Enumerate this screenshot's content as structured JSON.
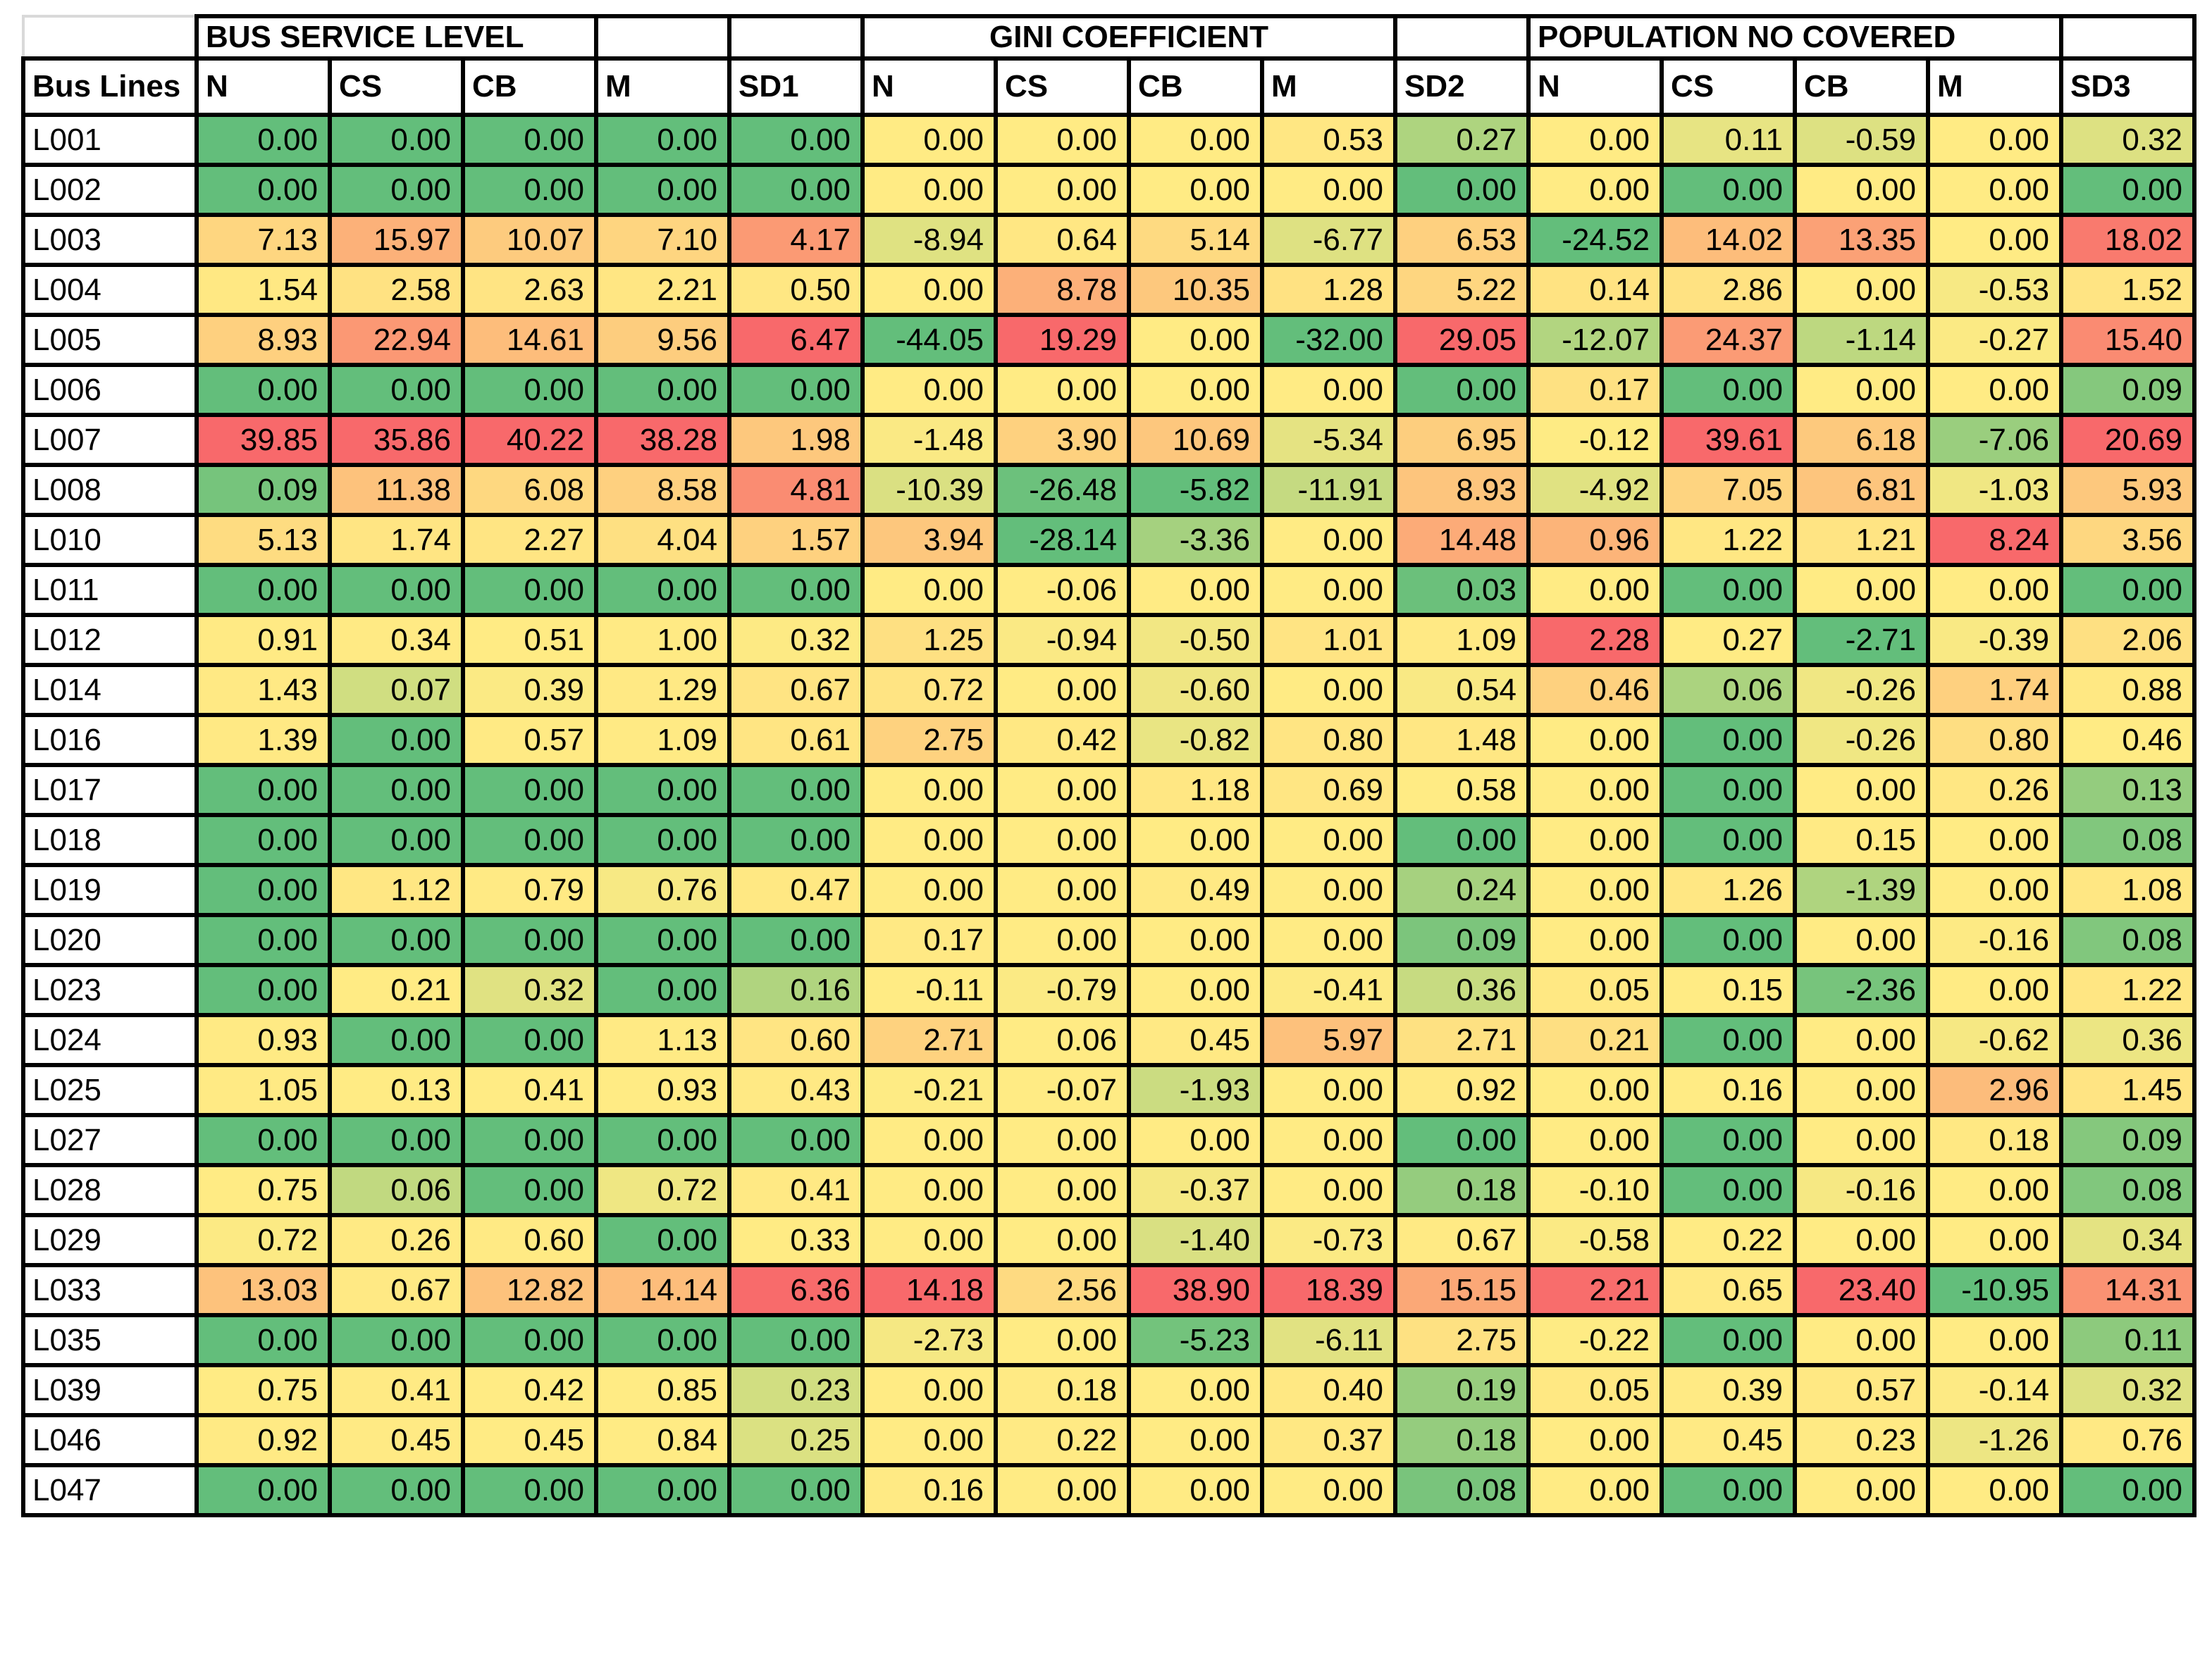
{
  "page": {
    "background": "#FFFFFF"
  },
  "chart_data": {
    "type": "heatmap",
    "title": "",
    "corner_label": "Bus Lines",
    "column_groups": [
      {
        "label": "BUS SERVICE LEVEL",
        "span": 3,
        "align": "left"
      },
      {
        "label": "",
        "span": 1,
        "align": "left"
      },
      {
        "label": "",
        "span": 1,
        "align": "left"
      },
      {
        "label": "GINI COEFFICIENT",
        "span": 4,
        "align": "center"
      },
      {
        "label": "",
        "span": 1,
        "align": "left"
      },
      {
        "label": "POPULATION NO COVERED",
        "span": 4,
        "align": "left"
      },
      {
        "label": "",
        "span": 1,
        "align": "left"
      }
    ],
    "columns": [
      "N",
      "CS",
      "CB",
      "M",
      "SD1",
      "N",
      "CS",
      "CB",
      "M",
      "SD2",
      "N",
      "CS",
      "CB",
      "M",
      "SD3"
    ],
    "value_format": "0.00",
    "color_scale": {
      "type": "3-color-scale-per-column",
      "min_color": "#63BE7B",
      "mid_color": "#FFEB84",
      "max_color": "#F8696B",
      "midpoint": "50th percentile"
    },
    "rows": [
      {
        "line": "L001",
        "values": [
          0.0,
          0.0,
          0.0,
          0.0,
          0.0,
          0.0,
          0.0,
          0.0,
          0.53,
          0.27,
          0.0,
          0.11,
          -0.59,
          0.0,
          0.32
        ]
      },
      {
        "line": "L002",
        "values": [
          0.0,
          0.0,
          0.0,
          0.0,
          0.0,
          0.0,
          0.0,
          0.0,
          0.0,
          0.0,
          0.0,
          0.0,
          0.0,
          0.0,
          0.0
        ]
      },
      {
        "line": "L003",
        "values": [
          7.13,
          15.97,
          10.07,
          7.1,
          4.17,
          -8.94,
          0.64,
          5.14,
          -6.77,
          6.53,
          -24.52,
          14.02,
          13.35,
          0.0,
          18.02
        ]
      },
      {
        "line": "L004",
        "values": [
          1.54,
          2.58,
          2.63,
          2.21,
          0.5,
          0.0,
          8.78,
          10.35,
          1.28,
          5.22,
          0.14,
          2.86,
          0.0,
          -0.53,
          1.52
        ]
      },
      {
        "line": "L005",
        "values": [
          8.93,
          22.94,
          14.61,
          9.56,
          6.47,
          -44.05,
          19.29,
          0.0,
          -32.0,
          29.05,
          -12.07,
          24.37,
          -1.14,
          -0.27,
          15.4
        ]
      },
      {
        "line": "L006",
        "values": [
          0.0,
          0.0,
          0.0,
          0.0,
          0.0,
          0.0,
          0.0,
          0.0,
          0.0,
          0.0,
          0.17,
          0.0,
          0.0,
          0.0,
          0.09
        ]
      },
      {
        "line": "L007",
        "values": [
          39.85,
          35.86,
          40.22,
          38.28,
          1.98,
          -1.48,
          3.9,
          10.69,
          -5.34,
          6.95,
          -0.12,
          39.61,
          6.18,
          -7.06,
          20.69
        ]
      },
      {
        "line": "L008",
        "values": [
          0.09,
          11.38,
          6.08,
          8.58,
          4.81,
          -10.39,
          -26.48,
          -5.82,
          -11.91,
          8.93,
          -4.92,
          7.05,
          6.81,
          -1.03,
          5.93
        ]
      },
      {
        "line": "L010",
        "values": [
          5.13,
          1.74,
          2.27,
          4.04,
          1.57,
          3.94,
          -28.14,
          -3.36,
          0.0,
          14.48,
          0.96,
          1.22,
          1.21,
          8.24,
          3.56
        ]
      },
      {
        "line": "L011",
        "values": [
          0.0,
          0.0,
          0.0,
          0.0,
          0.0,
          0.0,
          -0.06,
          0.0,
          0.0,
          0.03,
          0.0,
          0.0,
          0.0,
          0.0,
          0.0
        ]
      },
      {
        "line": "L012",
        "values": [
          0.91,
          0.34,
          0.51,
          1.0,
          0.32,
          1.25,
          -0.94,
          -0.5,
          1.01,
          1.09,
          2.28,
          0.27,
          -2.71,
          -0.39,
          2.06
        ]
      },
      {
        "line": "L014",
        "values": [
          1.43,
          0.07,
          0.39,
          1.29,
          0.67,
          0.72,
          0.0,
          -0.6,
          0.0,
          0.54,
          0.46,
          0.06,
          -0.26,
          1.74,
          0.88
        ]
      },
      {
        "line": "L016",
        "values": [
          1.39,
          0.0,
          0.57,
          1.09,
          0.61,
          2.75,
          0.42,
          -0.82,
          0.8,
          1.48,
          0.0,
          0.0,
          -0.26,
          0.8,
          0.46
        ]
      },
      {
        "line": "L017",
        "values": [
          0.0,
          0.0,
          0.0,
          0.0,
          0.0,
          0.0,
          0.0,
          1.18,
          0.69,
          0.58,
          0.0,
          0.0,
          0.0,
          0.26,
          0.13
        ]
      },
      {
        "line": "L018",
        "values": [
          0.0,
          0.0,
          0.0,
          0.0,
          0.0,
          0.0,
          0.0,
          0.0,
          0.0,
          0.0,
          0.0,
          0.0,
          0.15,
          0.0,
          0.08
        ]
      },
      {
        "line": "L019",
        "values": [
          0.0,
          1.12,
          0.79,
          0.76,
          0.47,
          0.0,
          0.0,
          0.49,
          0.0,
          0.24,
          0.0,
          1.26,
          -1.39,
          0.0,
          1.08
        ]
      },
      {
        "line": "L020",
        "values": [
          0.0,
          0.0,
          0.0,
          0.0,
          0.0,
          0.17,
          0.0,
          0.0,
          0.0,
          0.09,
          0.0,
          0.0,
          0.0,
          -0.16,
          0.08
        ]
      },
      {
        "line": "L023",
        "values": [
          0.0,
          0.21,
          0.32,
          0.0,
          0.16,
          -0.11,
          -0.79,
          0.0,
          -0.41,
          0.36,
          0.05,
          0.15,
          -2.36,
          0.0,
          1.22
        ]
      },
      {
        "line": "L024",
        "values": [
          0.93,
          0.0,
          0.0,
          1.13,
          0.6,
          2.71,
          0.06,
          0.45,
          5.97,
          2.71,
          0.21,
          0.0,
          0.0,
          -0.62,
          0.36
        ]
      },
      {
        "line": "L025",
        "values": [
          1.05,
          0.13,
          0.41,
          0.93,
          0.43,
          -0.21,
          -0.07,
          -1.93,
          0.0,
          0.92,
          0.0,
          0.16,
          0.0,
          2.96,
          1.45
        ]
      },
      {
        "line": "L027",
        "values": [
          0.0,
          0.0,
          0.0,
          0.0,
          0.0,
          0.0,
          0.0,
          0.0,
          0.0,
          0.0,
          0.0,
          0.0,
          0.0,
          0.18,
          0.09
        ]
      },
      {
        "line": "L028",
        "values": [
          0.75,
          0.06,
          0.0,
          0.72,
          0.41,
          0.0,
          0.0,
          -0.37,
          0.0,
          0.18,
          -0.1,
          0.0,
          -0.16,
          0.0,
          0.08
        ]
      },
      {
        "line": "L029",
        "values": [
          0.72,
          0.26,
          0.6,
          0.0,
          0.33,
          0.0,
          0.0,
          -1.4,
          -0.73,
          0.67,
          -0.58,
          0.22,
          0.0,
          0.0,
          0.34
        ]
      },
      {
        "line": "L033",
        "values": [
          13.03,
          0.67,
          12.82,
          14.14,
          6.36,
          14.18,
          2.56,
          38.9,
          18.39,
          15.15,
          2.21,
          0.65,
          23.4,
          -10.95,
          14.31
        ]
      },
      {
        "line": "L035",
        "values": [
          0.0,
          0.0,
          0.0,
          0.0,
          0.0,
          -2.73,
          0.0,
          -5.23,
          -6.11,
          2.75,
          -0.22,
          0.0,
          0.0,
          0.0,
          0.11
        ]
      },
      {
        "line": "L039",
        "values": [
          0.75,
          0.41,
          0.42,
          0.85,
          0.23,
          0.0,
          0.18,
          0.0,
          0.4,
          0.19,
          0.05,
          0.39,
          0.57,
          -0.14,
          0.32
        ]
      },
      {
        "line": "L046",
        "values": [
          0.92,
          0.45,
          0.45,
          0.84,
          0.25,
          0.0,
          0.22,
          0.0,
          0.37,
          0.18,
          0.0,
          0.45,
          0.23,
          -1.26,
          0.76
        ]
      },
      {
        "line": "L047",
        "values": [
          0.0,
          0.0,
          0.0,
          0.0,
          0.0,
          0.16,
          0.0,
          0.0,
          0.0,
          0.08,
          0.0,
          0.0,
          0.0,
          0.0,
          0.0
        ]
      }
    ],
    "layout": {
      "label_col_width": 246,
      "data_col_width": 189
    }
  }
}
